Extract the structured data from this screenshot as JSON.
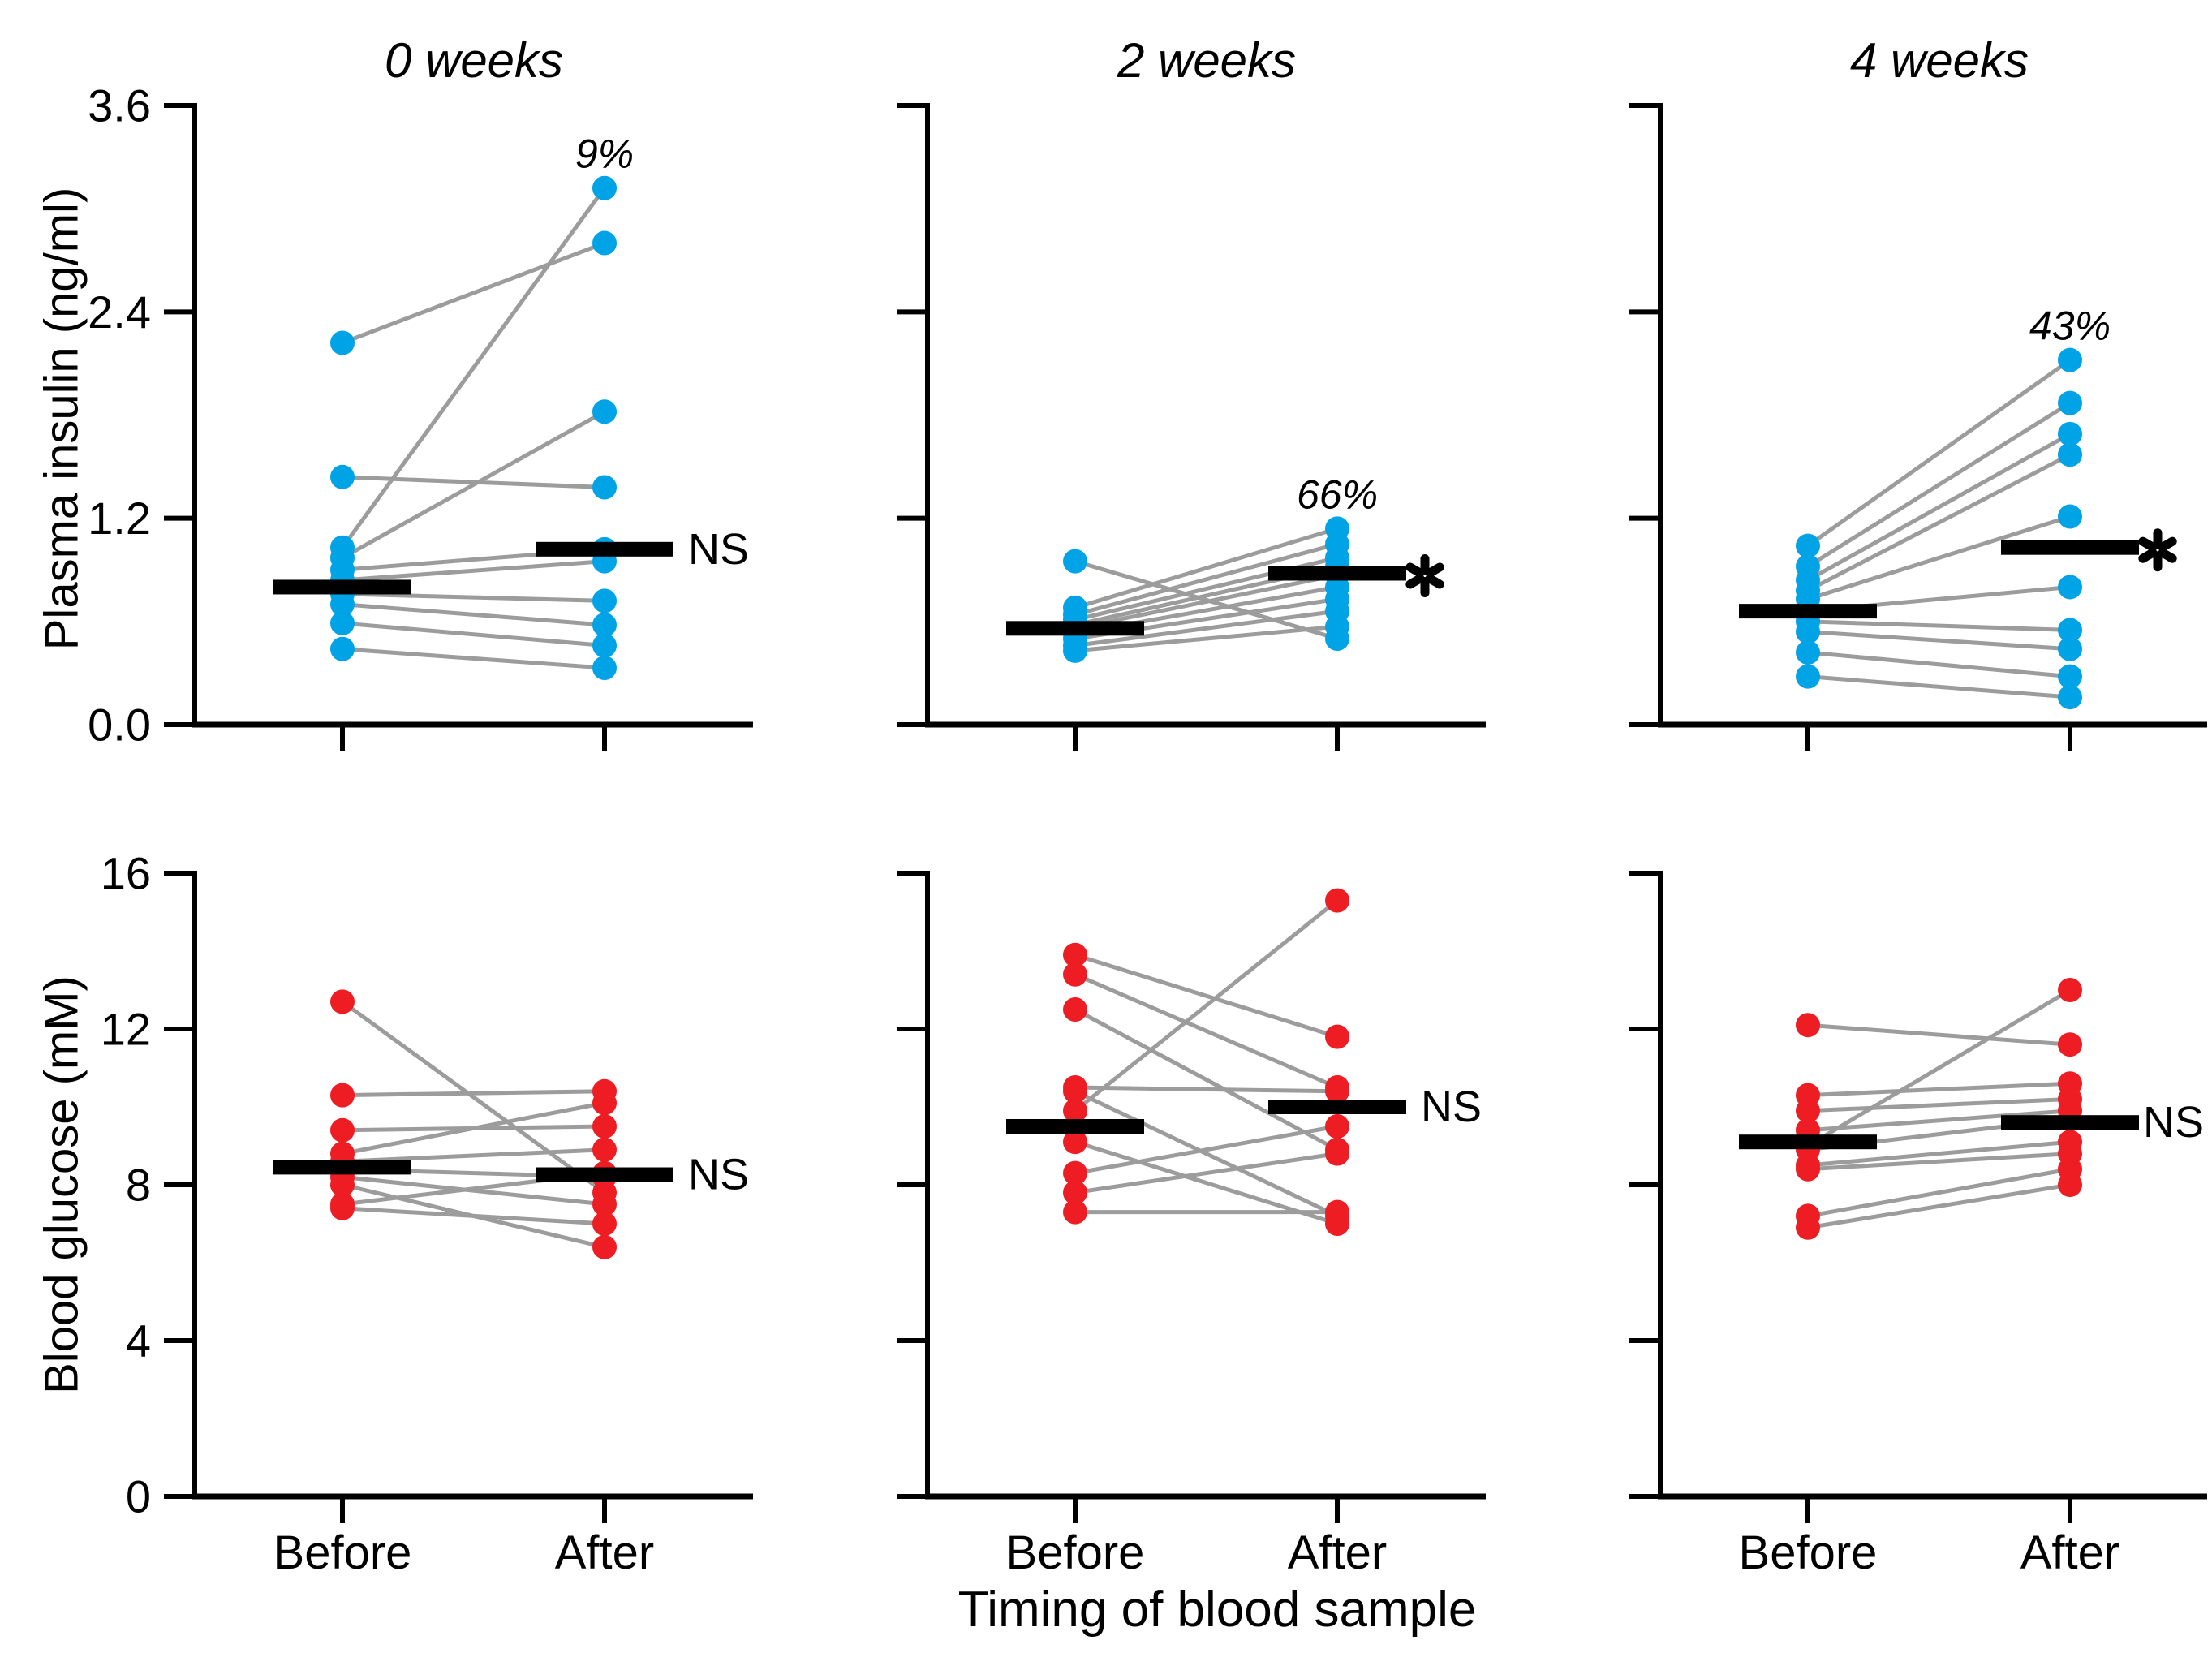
{
  "figure": {
    "xlabel": "Timing of blood sample",
    "x_categories": [
      "Before",
      "After"
    ],
    "col_titles": [
      "0 weeks",
      "2 weeks",
      "4 weeks"
    ],
    "row_ylabels": [
      "Plasma insulin (ng/ml)",
      "Blood glucose (mM)"
    ],
    "colors": {
      "insulin_points": "#00A3E6",
      "glucose_points": "#EE1D23",
      "pair_line": "#9C9C9C",
      "mean_bar": "#000000",
      "percent_annotation": "#00A3E6",
      "axis": "#000000"
    }
  },
  "chart_data": [
    {
      "type": "paired-scatter",
      "id": "insulin-0-weeks",
      "title": "0 weeks",
      "row": 0,
      "col": 0,
      "ylabel": "Plasma insulin (ng/ml)",
      "xcategories": [
        "Before",
        "After"
      ],
      "ylim": [
        0,
        3.6
      ],
      "yticks": [
        0,
        1.2,
        2.4,
        3.6
      ],
      "ytick_labels": [
        "0.0",
        "1.2",
        "2.4",
        "3.6"
      ],
      "show_ytick_labels": true,
      "pairs": [
        [
          2.22,
          2.8
        ],
        [
          1.44,
          1.38
        ],
        [
          1.03,
          3.12
        ],
        [
          0.97,
          1.82
        ],
        [
          0.9,
          1.02
        ],
        [
          0.84,
          0.95
        ],
        [
          0.76,
          0.72
        ],
        [
          0.7,
          0.58
        ],
        [
          0.59,
          0.46
        ],
        [
          0.44,
          0.33
        ]
      ],
      "mean_before": 0.8,
      "mean_after": 1.02,
      "percent_label": "9%",
      "significance": "NS"
    },
    {
      "type": "paired-scatter",
      "id": "insulin-2-weeks",
      "title": "2 weeks",
      "row": 0,
      "col": 1,
      "ylabel": "Plasma insulin (ng/ml)",
      "xcategories": [
        "Before",
        "After"
      ],
      "ylim": [
        0,
        3.6
      ],
      "yticks": [
        0,
        1.2,
        2.4,
        3.6
      ],
      "ytick_labels": [
        "0.0",
        "1.2",
        "2.4",
        "3.6"
      ],
      "show_ytick_labels": false,
      "pairs": [
        [
          0.95,
          0.5
        ],
        [
          0.68,
          1.14
        ],
        [
          0.64,
          1.05
        ],
        [
          0.61,
          0.97
        ],
        [
          0.58,
          0.92
        ],
        [
          0.56,
          0.87
        ],
        [
          0.53,
          0.8
        ],
        [
          0.5,
          0.73
        ],
        [
          0.46,
          0.66
        ],
        [
          0.43,
          0.57
        ]
      ],
      "mean_before": 0.56,
      "mean_after": 0.88,
      "percent_label": "66%",
      "significance": "*"
    },
    {
      "type": "paired-scatter",
      "id": "insulin-4-weeks",
      "title": "4 weeks",
      "row": 0,
      "col": 2,
      "ylabel": "Plasma insulin (ng/ml)",
      "xcategories": [
        "Before",
        "After"
      ],
      "ylim": [
        0,
        3.6
      ],
      "yticks": [
        0,
        1.2,
        2.4,
        3.6
      ],
      "ytick_labels": [
        "0.0",
        "1.2",
        "2.4",
        "3.6"
      ],
      "show_ytick_labels": false,
      "pairs": [
        [
          1.04,
          2.12
        ],
        [
          0.92,
          1.87
        ],
        [
          0.84,
          1.69
        ],
        [
          0.78,
          1.57
        ],
        [
          0.73,
          1.21
        ],
        [
          0.66,
          0.8
        ],
        [
          0.6,
          0.55
        ],
        [
          0.54,
          0.44
        ],
        [
          0.42,
          0.28
        ],
        [
          0.28,
          0.16
        ]
      ],
      "mean_before": 0.66,
      "mean_after": 1.03,
      "percent_label": "43%",
      "significance": "*"
    },
    {
      "type": "paired-scatter",
      "id": "glucose-0-weeks",
      "title": "0 weeks",
      "row": 1,
      "col": 0,
      "ylabel": "Blood glucose (mM)",
      "xcategories": [
        "Before",
        "After"
      ],
      "ylim": [
        0,
        16
      ],
      "yticks": [
        0,
        4,
        8,
        12,
        16
      ],
      "ytick_labels": [
        "0",
        "4",
        "8",
        "12",
        "16"
      ],
      "show_ytick_labels": true,
      "pairs": [
        [
          12.7,
          7.8
        ],
        [
          10.3,
          10.4
        ],
        [
          9.4,
          9.5
        ],
        [
          8.8,
          10.1
        ],
        [
          8.6,
          8.9
        ],
        [
          8.4,
          8.2
        ],
        [
          8.2,
          7.5
        ],
        [
          8.0,
          6.4
        ],
        [
          7.5,
          8.3
        ],
        [
          7.4,
          7.0
        ]
      ],
      "mean_before": 8.45,
      "mean_after": 8.26,
      "percent_label": null,
      "significance": "NS"
    },
    {
      "type": "paired-scatter",
      "id": "glucose-2-weeks",
      "title": "2 weeks",
      "row": 1,
      "col": 1,
      "ylabel": "Blood glucose (mM)",
      "xcategories": [
        "Before",
        "After"
      ],
      "ylim": [
        0,
        16
      ],
      "yticks": [
        0,
        4,
        8,
        12,
        16
      ],
      "ytick_labels": [
        "0",
        "4",
        "8",
        "12",
        "16"
      ],
      "show_ytick_labels": false,
      "pairs": [
        [
          13.9,
          11.8
        ],
        [
          13.4,
          10.5
        ],
        [
          12.5,
          8.9
        ],
        [
          10.5,
          10.4
        ],
        [
          10.4,
          7.2
        ],
        [
          9.9,
          15.3
        ],
        [
          9.1,
          7.0
        ],
        [
          8.3,
          9.5
        ],
        [
          7.8,
          8.8
        ],
        [
          7.3,
          7.3
        ]
      ],
      "mean_before": 9.5,
      "mean_after": 10.0,
      "percent_label": null,
      "significance": "NS"
    },
    {
      "type": "paired-scatter",
      "id": "glucose-4-weeks",
      "title": "4 weeks",
      "row": 1,
      "col": 2,
      "ylabel": "Blood glucose (mM)",
      "xcategories": [
        "Before",
        "After"
      ],
      "ylim": [
        0,
        16
      ],
      "yticks": [
        0,
        4,
        8,
        12,
        16
      ],
      "ytick_labels": [
        "0",
        "4",
        "8",
        "12",
        "16"
      ],
      "show_ytick_labels": false,
      "pairs": [
        [
          12.1,
          11.6
        ],
        [
          10.3,
          10.6
        ],
        [
          9.9,
          10.2
        ],
        [
          9.4,
          9.9
        ],
        [
          9.0,
          13.0
        ],
        [
          8.9,
          9.7
        ],
        [
          8.5,
          9.1
        ],
        [
          8.4,
          8.8
        ],
        [
          7.2,
          8.4
        ],
        [
          6.9,
          8.0
        ]
      ],
      "mean_before": 9.1,
      "mean_after": 9.6,
      "percent_label": null,
      "significance": "NS"
    }
  ]
}
